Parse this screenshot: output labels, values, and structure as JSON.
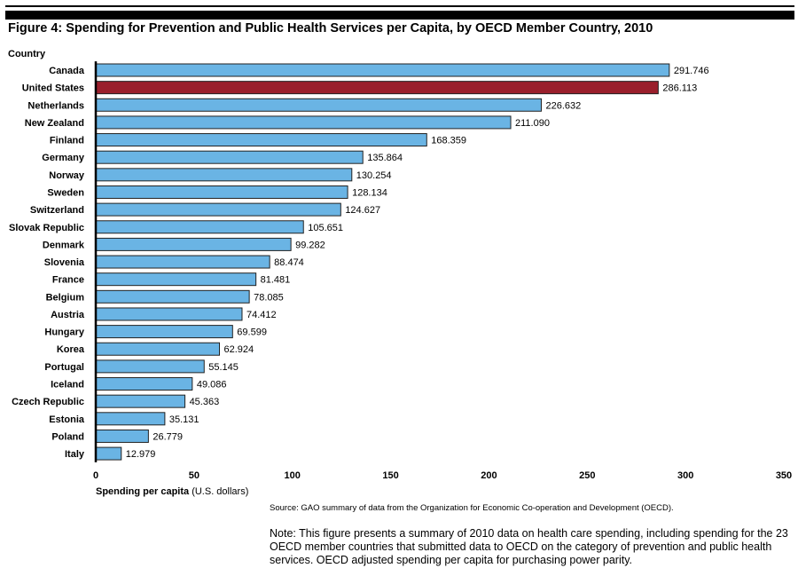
{
  "chart_data": {
    "type": "bar",
    "orientation": "horizontal",
    "title": "Figure 4: Spending for Prevention and Public Health Services per Capita, by OECD Member Country, 2010",
    "ylabel": "Country",
    "xlabel_bold": "Spending per capita",
    "xlabel_rest": " (U.S. dollars)",
    "xlim": [
      0,
      350
    ],
    "xticks": [
      0,
      50,
      100,
      150,
      200,
      250,
      300,
      350
    ],
    "grid": false,
    "colors": {
      "default": "#6ab4e4",
      "highlight": "#9a1f2c"
    },
    "highlight": "United States",
    "categories": [
      "Canada",
      "United States",
      "Netherlands",
      "New Zealand",
      "Finland",
      "Germany",
      "Norway",
      "Sweden",
      "Switzerland",
      "Slovak Republic",
      "Denmark",
      "Slovenia",
      "France",
      "Belgium",
      "Austria",
      "Hungary",
      "Korea",
      "Portugal",
      "Iceland",
      "Czech Republic",
      "Estonia",
      "Poland",
      "Italy"
    ],
    "values": [
      291.746,
      286.113,
      226.632,
      211.09,
      168.359,
      135.864,
      130.254,
      128.134,
      124.627,
      105.651,
      99.282,
      88.474,
      81.481,
      78.085,
      74.412,
      69.599,
      62.924,
      55.145,
      49.086,
      45.363,
      35.131,
      26.779,
      12.979
    ],
    "labels": [
      "291.746",
      "286.113",
      "226.632",
      "211.090",
      "168.359",
      "135.864",
      "130.254",
      "128.134",
      "124.627",
      "105.651",
      "99.282",
      "88.474",
      "81.481",
      "78.085",
      "74.412",
      "69.599",
      "62.924",
      "55.145",
      "49.086",
      "45.363",
      "35.131",
      "26.779",
      "12.979"
    ]
  },
  "source": "Source: GAO summary of data from the Organization for Economic Co-operation and Development (OECD).",
  "note": "Note: This figure presents a summary of 2010 data on health care spending, including spending for the 23 OECD member countries that submitted data to OECD on the category of prevention and public health services. OECD adjusted spending per capita for purchasing power parity."
}
